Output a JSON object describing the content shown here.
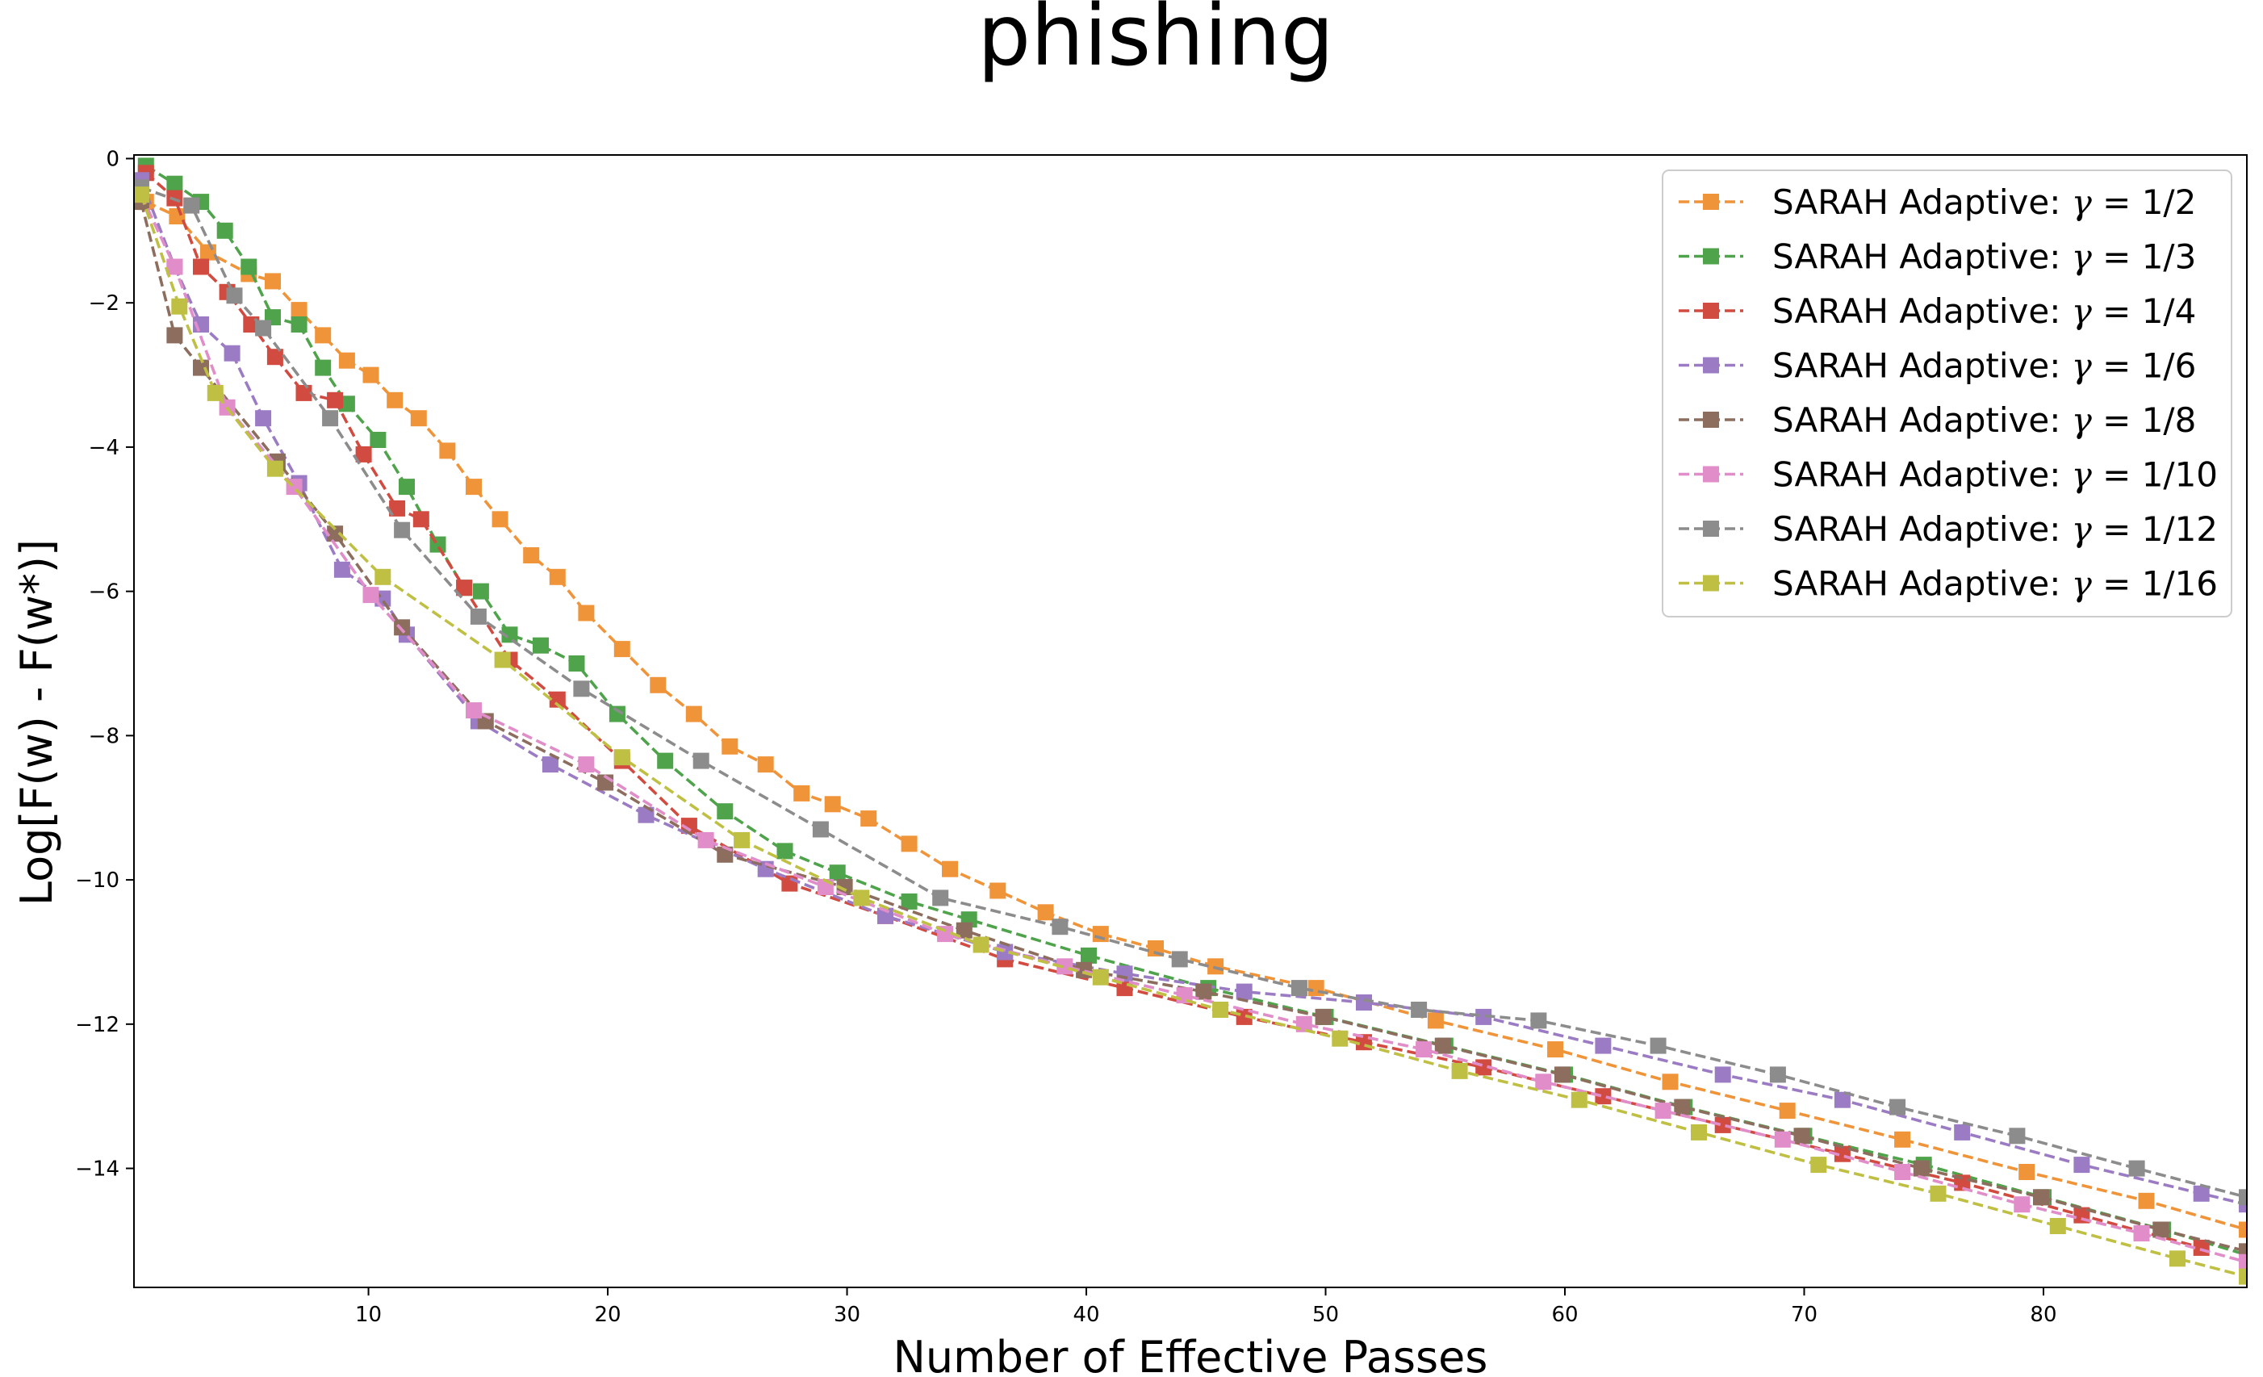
{
  "chart_data": {
    "type": "line",
    "title": "phishing",
    "xlabel": "Number of Effective Passes",
    "ylabel": "Log[F(w) - F(w*)]",
    "xlim": [
      0.2,
      88.5
    ],
    "ylim": [
      -15.65,
      0.05
    ],
    "xticks": [
      10,
      20,
      30,
      40,
      50,
      60,
      70,
      80
    ],
    "yticks": [
      0,
      -2,
      -4,
      -6,
      -8,
      -10,
      -12,
      -14
    ],
    "xtick_labels": [
      "10",
      "20",
      "30",
      "40",
      "50",
      "60",
      "70",
      "80"
    ],
    "ytick_labels": [
      "0",
      "−2",
      "−4",
      "−6",
      "−8",
      "−10",
      "−12",
      "−14"
    ],
    "grid": false,
    "legend_position": "top-right",
    "marker": "square",
    "line_style": "dashed",
    "series": [
      {
        "name": "SARAH Adaptive: γ = 1/2",
        "legend_prefix": "SARAH Adaptive: ",
        "legend_gamma": "γ",
        "legend_suffix": " = 1/2",
        "color": "#f0943a",
        "points": [
          [
            0.7,
            -0.6
          ],
          [
            2,
            -0.8
          ],
          [
            3.3,
            -1.3
          ],
          [
            5,
            -1.6
          ],
          [
            6,
            -1.7
          ],
          [
            7.1,
            -2.1
          ],
          [
            8.1,
            -2.45
          ],
          [
            9.1,
            -2.8
          ],
          [
            10.1,
            -3.0
          ],
          [
            11.1,
            -3.35
          ],
          [
            12.1,
            -3.6
          ],
          [
            13.3,
            -4.05
          ],
          [
            14.4,
            -4.55
          ],
          [
            15.5,
            -5.0
          ],
          [
            16.8,
            -5.5
          ],
          [
            17.9,
            -5.8
          ],
          [
            19.1,
            -6.3
          ],
          [
            20.6,
            -6.8
          ],
          [
            22.1,
            -7.3
          ],
          [
            23.6,
            -7.7
          ],
          [
            25.1,
            -8.15
          ],
          [
            26.6,
            -8.4
          ],
          [
            28.1,
            -8.8
          ],
          [
            29.4,
            -8.95
          ],
          [
            30.9,
            -9.15
          ],
          [
            32.6,
            -9.5
          ],
          [
            34.3,
            -9.85
          ],
          [
            36.3,
            -10.15
          ],
          [
            38.3,
            -10.45
          ],
          [
            40.6,
            -10.75
          ],
          [
            42.9,
            -10.95
          ],
          [
            45.4,
            -11.2
          ],
          [
            49.6,
            -11.5
          ],
          [
            54.6,
            -11.95
          ],
          [
            59.6,
            -12.35
          ],
          [
            64.4,
            -12.8
          ],
          [
            69.3,
            -13.2
          ],
          [
            74.1,
            -13.6
          ],
          [
            79.3,
            -14.05
          ],
          [
            84.3,
            -14.45
          ],
          [
            88.5,
            -14.85
          ]
        ]
      },
      {
        "name": "SARAH Adaptive: γ = 1/3",
        "legend_prefix": "SARAH Adaptive: ",
        "legend_gamma": "γ",
        "legend_suffix": " = 1/3",
        "color": "#4fa34b",
        "points": [
          [
            0.7,
            -0.1
          ],
          [
            1.9,
            -0.35
          ],
          [
            3,
            -0.6
          ],
          [
            4,
            -1.0
          ],
          [
            5,
            -1.5
          ],
          [
            6,
            -2.2
          ],
          [
            7.1,
            -2.3
          ],
          [
            8.1,
            -2.9
          ],
          [
            9.1,
            -3.4
          ],
          [
            10.4,
            -3.9
          ],
          [
            11.6,
            -4.55
          ],
          [
            12.9,
            -5.35
          ],
          [
            14,
            -5.95
          ],
          [
            14.7,
            -6.0
          ],
          [
            15.9,
            -6.6
          ],
          [
            17.2,
            -6.75
          ],
          [
            18.7,
            -7.0
          ],
          [
            20.4,
            -7.7
          ],
          [
            22.4,
            -8.35
          ],
          [
            24.9,
            -9.05
          ],
          [
            27.4,
            -9.6
          ],
          [
            29.6,
            -9.9
          ],
          [
            32.6,
            -10.3
          ],
          [
            35.1,
            -10.55
          ],
          [
            40.1,
            -11.05
          ],
          [
            45.1,
            -11.5
          ],
          [
            50,
            -11.9
          ],
          [
            55,
            -12.3
          ],
          [
            60,
            -12.7
          ],
          [
            65,
            -13.15
          ],
          [
            70,
            -13.55
          ],
          [
            75,
            -13.95
          ],
          [
            80,
            -14.4
          ],
          [
            85,
            -14.85
          ],
          [
            88.5,
            -15.2
          ]
        ]
      },
      {
        "name": "SARAH Adaptive: γ = 1/4",
        "legend_prefix": "SARAH Adaptive: ",
        "legend_gamma": "γ",
        "legend_suffix": " = 1/4",
        "color": "#d14b40",
        "points": [
          [
            0.7,
            -0.2
          ],
          [
            1.9,
            -0.55
          ],
          [
            3,
            -1.5
          ],
          [
            4.1,
            -1.85
          ],
          [
            5.1,
            -2.3
          ],
          [
            6.1,
            -2.75
          ],
          [
            7.3,
            -3.25
          ],
          [
            8.6,
            -3.35
          ],
          [
            9.8,
            -4.1
          ],
          [
            11.2,
            -4.85
          ],
          [
            12.2,
            -5.0
          ],
          [
            14,
            -5.95
          ],
          [
            15.9,
            -6.95
          ],
          [
            17.9,
            -7.5
          ],
          [
            20.6,
            -8.35
          ],
          [
            23.4,
            -9.25
          ],
          [
            27.6,
            -10.05
          ],
          [
            31.6,
            -10.5
          ],
          [
            36.6,
            -11.1
          ],
          [
            41.6,
            -11.5
          ],
          [
            46.6,
            -11.9
          ],
          [
            51.6,
            -12.25
          ],
          [
            56.6,
            -12.6
          ],
          [
            61.6,
            -13.0
          ],
          [
            66.6,
            -13.4
          ],
          [
            71.6,
            -13.8
          ],
          [
            76.6,
            -14.2
          ],
          [
            81.6,
            -14.65
          ],
          [
            86.6,
            -15.1
          ]
        ]
      },
      {
        "name": "SARAH Adaptive: γ = 1/6",
        "legend_prefix": "SARAH Adaptive: ",
        "legend_gamma": "γ",
        "legend_suffix": " = 1/6",
        "color": "#9b7cc4",
        "points": [
          [
            0.5,
            -0.3
          ],
          [
            1.9,
            -1.5
          ],
          [
            3,
            -2.3
          ],
          [
            4.3,
            -2.7
          ],
          [
            5.6,
            -3.6
          ],
          [
            7.1,
            -4.5
          ],
          [
            8.9,
            -5.7
          ],
          [
            10.6,
            -6.1
          ],
          [
            11.6,
            -6.6
          ],
          [
            14.6,
            -7.8
          ],
          [
            17.6,
            -8.4
          ],
          [
            21.6,
            -9.1
          ],
          [
            26.6,
            -9.85
          ],
          [
            31.6,
            -10.5
          ],
          [
            36.6,
            -11.0
          ],
          [
            41.6,
            -11.3
          ],
          [
            46.6,
            -11.55
          ],
          [
            51.6,
            -11.7
          ],
          [
            56.6,
            -11.9
          ],
          [
            61.6,
            -12.3
          ],
          [
            66.6,
            -12.7
          ],
          [
            71.6,
            -13.05
          ],
          [
            76.6,
            -13.5
          ],
          [
            81.6,
            -13.95
          ],
          [
            86.6,
            -14.35
          ],
          [
            88.5,
            -14.5
          ]
        ]
      },
      {
        "name": "SARAH Adaptive: γ = 1/8",
        "legend_prefix": "SARAH Adaptive: ",
        "legend_gamma": "γ",
        "legend_suffix": " = 1/8",
        "color": "#8c6d5e",
        "points": [
          [
            0.5,
            -0.6
          ],
          [
            1.9,
            -2.45
          ],
          [
            3,
            -2.9
          ],
          [
            6.2,
            -4.2
          ],
          [
            8.6,
            -5.2
          ],
          [
            11.4,
            -6.5
          ],
          [
            14.9,
            -7.8
          ],
          [
            19.9,
            -8.65
          ],
          [
            24.9,
            -9.65
          ],
          [
            29.9,
            -10.1
          ],
          [
            34.9,
            -10.7
          ],
          [
            39.9,
            -11.25
          ],
          [
            44.9,
            -11.55
          ],
          [
            49.9,
            -11.9
          ],
          [
            54.9,
            -12.3
          ],
          [
            59.9,
            -12.7
          ],
          [
            64.9,
            -13.15
          ],
          [
            69.9,
            -13.55
          ],
          [
            74.9,
            -14.0
          ],
          [
            79.9,
            -14.4
          ],
          [
            84.9,
            -14.85
          ],
          [
            88.5,
            -15.15
          ]
        ]
      },
      {
        "name": "SARAH Adaptive: γ = 1/10",
        "legend_prefix": "SARAH Adaptive: ",
        "legend_gamma": "γ",
        "legend_suffix": " = 1/10",
        "color": "#e08dc9",
        "points": [
          [
            0.5,
            -0.5
          ],
          [
            1.9,
            -1.5
          ],
          [
            4.1,
            -3.45
          ],
          [
            6.9,
            -4.55
          ],
          [
            10.1,
            -6.05
          ],
          [
            14.4,
            -7.65
          ],
          [
            19.1,
            -8.4
          ],
          [
            24.1,
            -9.45
          ],
          [
            29.1,
            -10.1
          ],
          [
            34.1,
            -10.75
          ],
          [
            39.1,
            -11.2
          ],
          [
            44.1,
            -11.6
          ],
          [
            49.1,
            -12.0
          ],
          [
            54.1,
            -12.35
          ],
          [
            59.1,
            -12.8
          ],
          [
            64.1,
            -13.2
          ],
          [
            69.1,
            -13.6
          ],
          [
            74.1,
            -14.05
          ],
          [
            79.1,
            -14.5
          ],
          [
            84.1,
            -14.9
          ],
          [
            88.5,
            -15.3
          ]
        ]
      },
      {
        "name": "SARAH Adaptive: γ = 1/12",
        "legend_prefix": "SARAH Adaptive: ",
        "legend_gamma": "γ",
        "legend_suffix": " = 1/12",
        "color": "#8c8c8c",
        "points": [
          [
            0.5,
            -0.4
          ],
          [
            2.6,
            -0.65
          ],
          [
            4.4,
            -1.9
          ],
          [
            5.6,
            -2.35
          ],
          [
            8.4,
            -3.6
          ],
          [
            11.4,
            -5.15
          ],
          [
            14.6,
            -6.35
          ],
          [
            18.9,
            -7.35
          ],
          [
            23.9,
            -8.35
          ],
          [
            28.9,
            -9.3
          ],
          [
            33.9,
            -10.25
          ],
          [
            38.9,
            -10.65
          ],
          [
            43.9,
            -11.1
          ],
          [
            48.9,
            -11.5
          ],
          [
            53.9,
            -11.8
          ],
          [
            58.9,
            -11.95
          ],
          [
            63.9,
            -12.3
          ],
          [
            68.9,
            -12.7
          ],
          [
            73.9,
            -13.15
          ],
          [
            78.9,
            -13.55
          ],
          [
            83.9,
            -14.0
          ],
          [
            88.5,
            -14.4
          ]
        ]
      },
      {
        "name": "SARAH Adaptive: γ = 1/16",
        "legend_prefix": "SARAH Adaptive: ",
        "legend_gamma": "γ",
        "legend_suffix": " = 1/16",
        "color": "#bfc043",
        "points": [
          [
            0.5,
            -0.5
          ],
          [
            2.1,
            -2.05
          ],
          [
            3.6,
            -3.25
          ],
          [
            6.1,
            -4.3
          ],
          [
            10.6,
            -5.8
          ],
          [
            15.6,
            -6.95
          ],
          [
            20.6,
            -8.3
          ],
          [
            25.6,
            -9.45
          ],
          [
            30.6,
            -10.25
          ],
          [
            35.6,
            -10.9
          ],
          [
            40.6,
            -11.35
          ],
          [
            45.6,
            -11.8
          ],
          [
            50.6,
            -12.2
          ],
          [
            55.6,
            -12.65
          ],
          [
            60.6,
            -13.05
          ],
          [
            65.6,
            -13.5
          ],
          [
            70.6,
            -13.95
          ],
          [
            75.6,
            -14.35
          ],
          [
            80.6,
            -14.8
          ],
          [
            85.6,
            -15.25
          ],
          [
            88.5,
            -15.5
          ]
        ]
      }
    ]
  }
}
